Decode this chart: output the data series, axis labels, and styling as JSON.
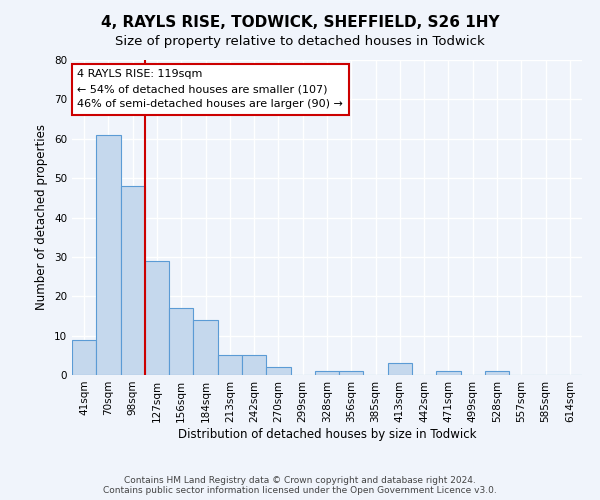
{
  "title": "4, RAYLS RISE, TODWICK, SHEFFIELD, S26 1HY",
  "subtitle": "Size of property relative to detached houses in Todwick",
  "xlabel": "Distribution of detached houses by size in Todwick",
  "ylabel": "Number of detached properties",
  "bar_values": [
    9,
    61,
    48,
    29,
    17,
    14,
    5,
    5,
    2,
    0,
    1,
    1,
    0,
    3,
    0,
    1,
    0,
    1,
    0,
    0,
    0
  ],
  "bin_labels": [
    "41sqm",
    "70sqm",
    "98sqm",
    "127sqm",
    "156sqm",
    "184sqm",
    "213sqm",
    "242sqm",
    "270sqm",
    "299sqm",
    "328sqm",
    "356sqm",
    "385sqm",
    "413sqm",
    "442sqm",
    "471sqm",
    "499sqm",
    "528sqm",
    "557sqm",
    "585sqm",
    "614sqm"
  ],
  "bar_color": "#c5d8ed",
  "bar_edge_color": "#5b9bd5",
  "vline_x_index": 2.5,
  "vline_color": "#cc0000",
  "annotation_text": "4 RAYLS RISE: 119sqm\n← 54% of detached houses are smaller (107)\n46% of semi-detached houses are larger (90) →",
  "annotation_box_color": "#ffffff",
  "annotation_box_edge": "#cc0000",
  "ylim": [
    0,
    80
  ],
  "yticks": [
    0,
    10,
    20,
    30,
    40,
    50,
    60,
    70,
    80
  ],
  "footer_text": "Contains HM Land Registry data © Crown copyright and database right 2024.\nContains public sector information licensed under the Open Government Licence v3.0.",
  "background_color": "#f0f4fb",
  "title_fontsize": 11,
  "subtitle_fontsize": 9.5,
  "axis_label_fontsize": 8.5,
  "tick_fontsize": 7.5,
  "footer_fontsize": 6.5,
  "annot_fontsize": 8
}
